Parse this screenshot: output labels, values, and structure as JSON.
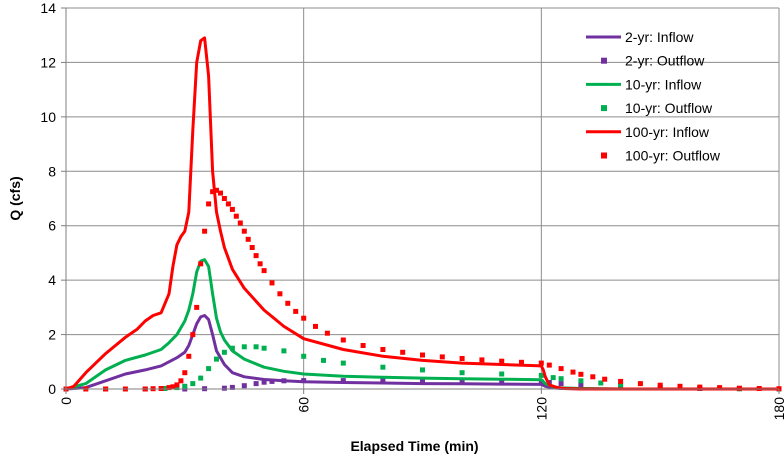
{
  "chart_data": {
    "type": "line",
    "title": "",
    "xlabel": "Elapsed Time (min)",
    "ylabel": "Q (cfs)",
    "xlim": [
      0,
      180
    ],
    "ylim": [
      0,
      14
    ],
    "xticks": [
      0,
      60,
      120,
      180
    ],
    "yticks": [
      0,
      2,
      4,
      6,
      8,
      10,
      12,
      14
    ],
    "grid": true,
    "legend_position": "top-right",
    "series": [
      {
        "name": "2-yr: Inflow",
        "style": "line",
        "color": "#7030A0",
        "x": [
          0,
          5,
          10,
          15,
          20,
          24,
          26,
          28,
          30,
          31,
          32,
          33,
          34,
          35,
          36,
          37,
          38,
          40,
          42,
          45,
          50,
          55,
          60,
          70,
          80,
          90,
          100,
          110,
          120,
          121,
          123,
          125,
          130,
          140,
          150,
          160,
          170,
          180
        ],
        "y": [
          0,
          0.05,
          0.3,
          0.55,
          0.7,
          0.85,
          1.0,
          1.15,
          1.35,
          1.6,
          2.0,
          2.4,
          2.65,
          2.7,
          2.55,
          2.0,
          1.4,
          0.9,
          0.6,
          0.45,
          0.35,
          0.3,
          0.27,
          0.24,
          0.22,
          0.2,
          0.19,
          0.18,
          0.17,
          0.1,
          0.04,
          0.02,
          0.01,
          0,
          0,
          0,
          0,
          0
        ]
      },
      {
        "name": "2-yr: Outflow",
        "style": "markers",
        "color": "#7030A0",
        "x": [
          0,
          10,
          20,
          30,
          35,
          40,
          42,
          45,
          48,
          50,
          52,
          55,
          60,
          70,
          80,
          90,
          100,
          110,
          120,
          122,
          125,
          130,
          140,
          150,
          160,
          170,
          180
        ],
        "y": [
          0,
          0,
          0,
          0,
          0.01,
          0.03,
          0.06,
          0.12,
          0.2,
          0.25,
          0.28,
          0.3,
          0.31,
          0.31,
          0.3,
          0.29,
          0.28,
          0.27,
          0.26,
          0.24,
          0.2,
          0.15,
          0.08,
          0.04,
          0.02,
          0.01,
          0
        ]
      },
      {
        "name": "10-yr: Inflow",
        "style": "line",
        "color": "#00B050",
        "x": [
          0,
          5,
          10,
          15,
          20,
          24,
          26,
          28,
          30,
          31,
          32,
          33,
          34,
          35,
          36,
          37,
          38,
          39,
          40,
          42,
          45,
          50,
          55,
          60,
          70,
          80,
          90,
          100,
          110,
          120,
          121,
          123,
          125,
          130,
          140,
          150,
          160,
          170,
          180
        ],
        "y": [
          0,
          0.2,
          0.7,
          1.05,
          1.25,
          1.45,
          1.7,
          2.0,
          2.5,
          2.9,
          3.5,
          4.3,
          4.7,
          4.75,
          4.5,
          3.5,
          2.6,
          2.1,
          1.8,
          1.4,
          1.1,
          0.8,
          0.65,
          0.55,
          0.47,
          0.43,
          0.4,
          0.38,
          0.36,
          0.34,
          0.2,
          0.08,
          0.04,
          0.02,
          0,
          0,
          0,
          0,
          0
        ]
      },
      {
        "name": "10-yr: Outflow",
        "style": "markers",
        "color": "#00B050",
        "x": [
          0,
          10,
          20,
          25,
          28,
          30,
          32,
          34,
          36,
          38,
          40,
          42,
          45,
          48,
          50,
          55,
          60,
          65,
          70,
          80,
          90,
          100,
          110,
          120,
          123,
          125,
          130,
          135,
          140,
          150,
          160,
          170,
          180
        ],
        "y": [
          0,
          0,
          0,
          0.02,
          0.05,
          0.1,
          0.2,
          0.4,
          0.75,
          1.1,
          1.35,
          1.5,
          1.55,
          1.55,
          1.5,
          1.4,
          1.2,
          1.05,
          0.95,
          0.8,
          0.7,
          0.6,
          0.55,
          0.5,
          0.42,
          0.38,
          0.3,
          0.22,
          0.15,
          0.07,
          0.03,
          0.01,
          0
        ]
      },
      {
        "name": "100-yr: Inflow",
        "style": "line",
        "color": "#FF0000",
        "x": [
          0,
          2,
          5,
          10,
          15,
          18,
          20,
          22,
          24,
          26,
          27,
          28,
          29,
          30,
          31,
          32,
          33,
          34,
          35,
          36,
          37,
          38,
          39,
          40,
          42,
          45,
          50,
          55,
          60,
          70,
          80,
          90,
          100,
          110,
          120,
          120.5,
          121,
          122,
          124,
          126,
          130,
          140,
          150,
          160,
          170,
          180
        ],
        "y": [
          0,
          0.1,
          0.6,
          1.3,
          1.9,
          2.2,
          2.5,
          2.7,
          2.8,
          3.5,
          4.5,
          5.3,
          5.6,
          5.8,
          6.5,
          9.5,
          12.0,
          12.8,
          12.9,
          11.5,
          8.0,
          6.5,
          5.8,
          5.2,
          4.4,
          3.7,
          2.9,
          2.3,
          1.85,
          1.45,
          1.2,
          1.05,
          0.95,
          0.9,
          0.85,
          0.7,
          0.45,
          0.15,
          0.05,
          0.02,
          0,
          0,
          0,
          0,
          0,
          0
        ]
      },
      {
        "name": "100-yr: Outflow",
        "style": "markers",
        "color": "#FF0000",
        "x": [
          0,
          5,
          10,
          15,
          20,
          22,
          24,
          26,
          27,
          28,
          29,
          30,
          31,
          32,
          33,
          34,
          35,
          36,
          37,
          38,
          39,
          40,
          41,
          42,
          43,
          44,
          45,
          46,
          47,
          48,
          49,
          50,
          52,
          54,
          56,
          58,
          60,
          63,
          66,
          70,
          75,
          80,
          85,
          90,
          95,
          100,
          105,
          110,
          115,
          120,
          122,
          125,
          128,
          130,
          133,
          136,
          140,
          145,
          150,
          155,
          160,
          165,
          170,
          175,
          180
        ],
        "y": [
          0,
          0,
          0,
          0,
          0,
          0.01,
          0.02,
          0.05,
          0.08,
          0.15,
          0.3,
          0.6,
          1.2,
          2.0,
          3.0,
          4.6,
          5.8,
          6.8,
          7.25,
          7.3,
          7.2,
          7.0,
          6.8,
          6.6,
          6.35,
          6.1,
          5.8,
          5.5,
          5.2,
          4.9,
          4.6,
          4.35,
          3.9,
          3.5,
          3.15,
          2.85,
          2.6,
          2.3,
          2.05,
          1.8,
          1.6,
          1.45,
          1.35,
          1.25,
          1.18,
          1.12,
          1.07,
          1.02,
          0.98,
          0.95,
          0.88,
          0.75,
          0.62,
          0.54,
          0.45,
          0.36,
          0.28,
          0.2,
          0.14,
          0.1,
          0.07,
          0.05,
          0.03,
          0.02,
          0.01
        ]
      }
    ]
  }
}
